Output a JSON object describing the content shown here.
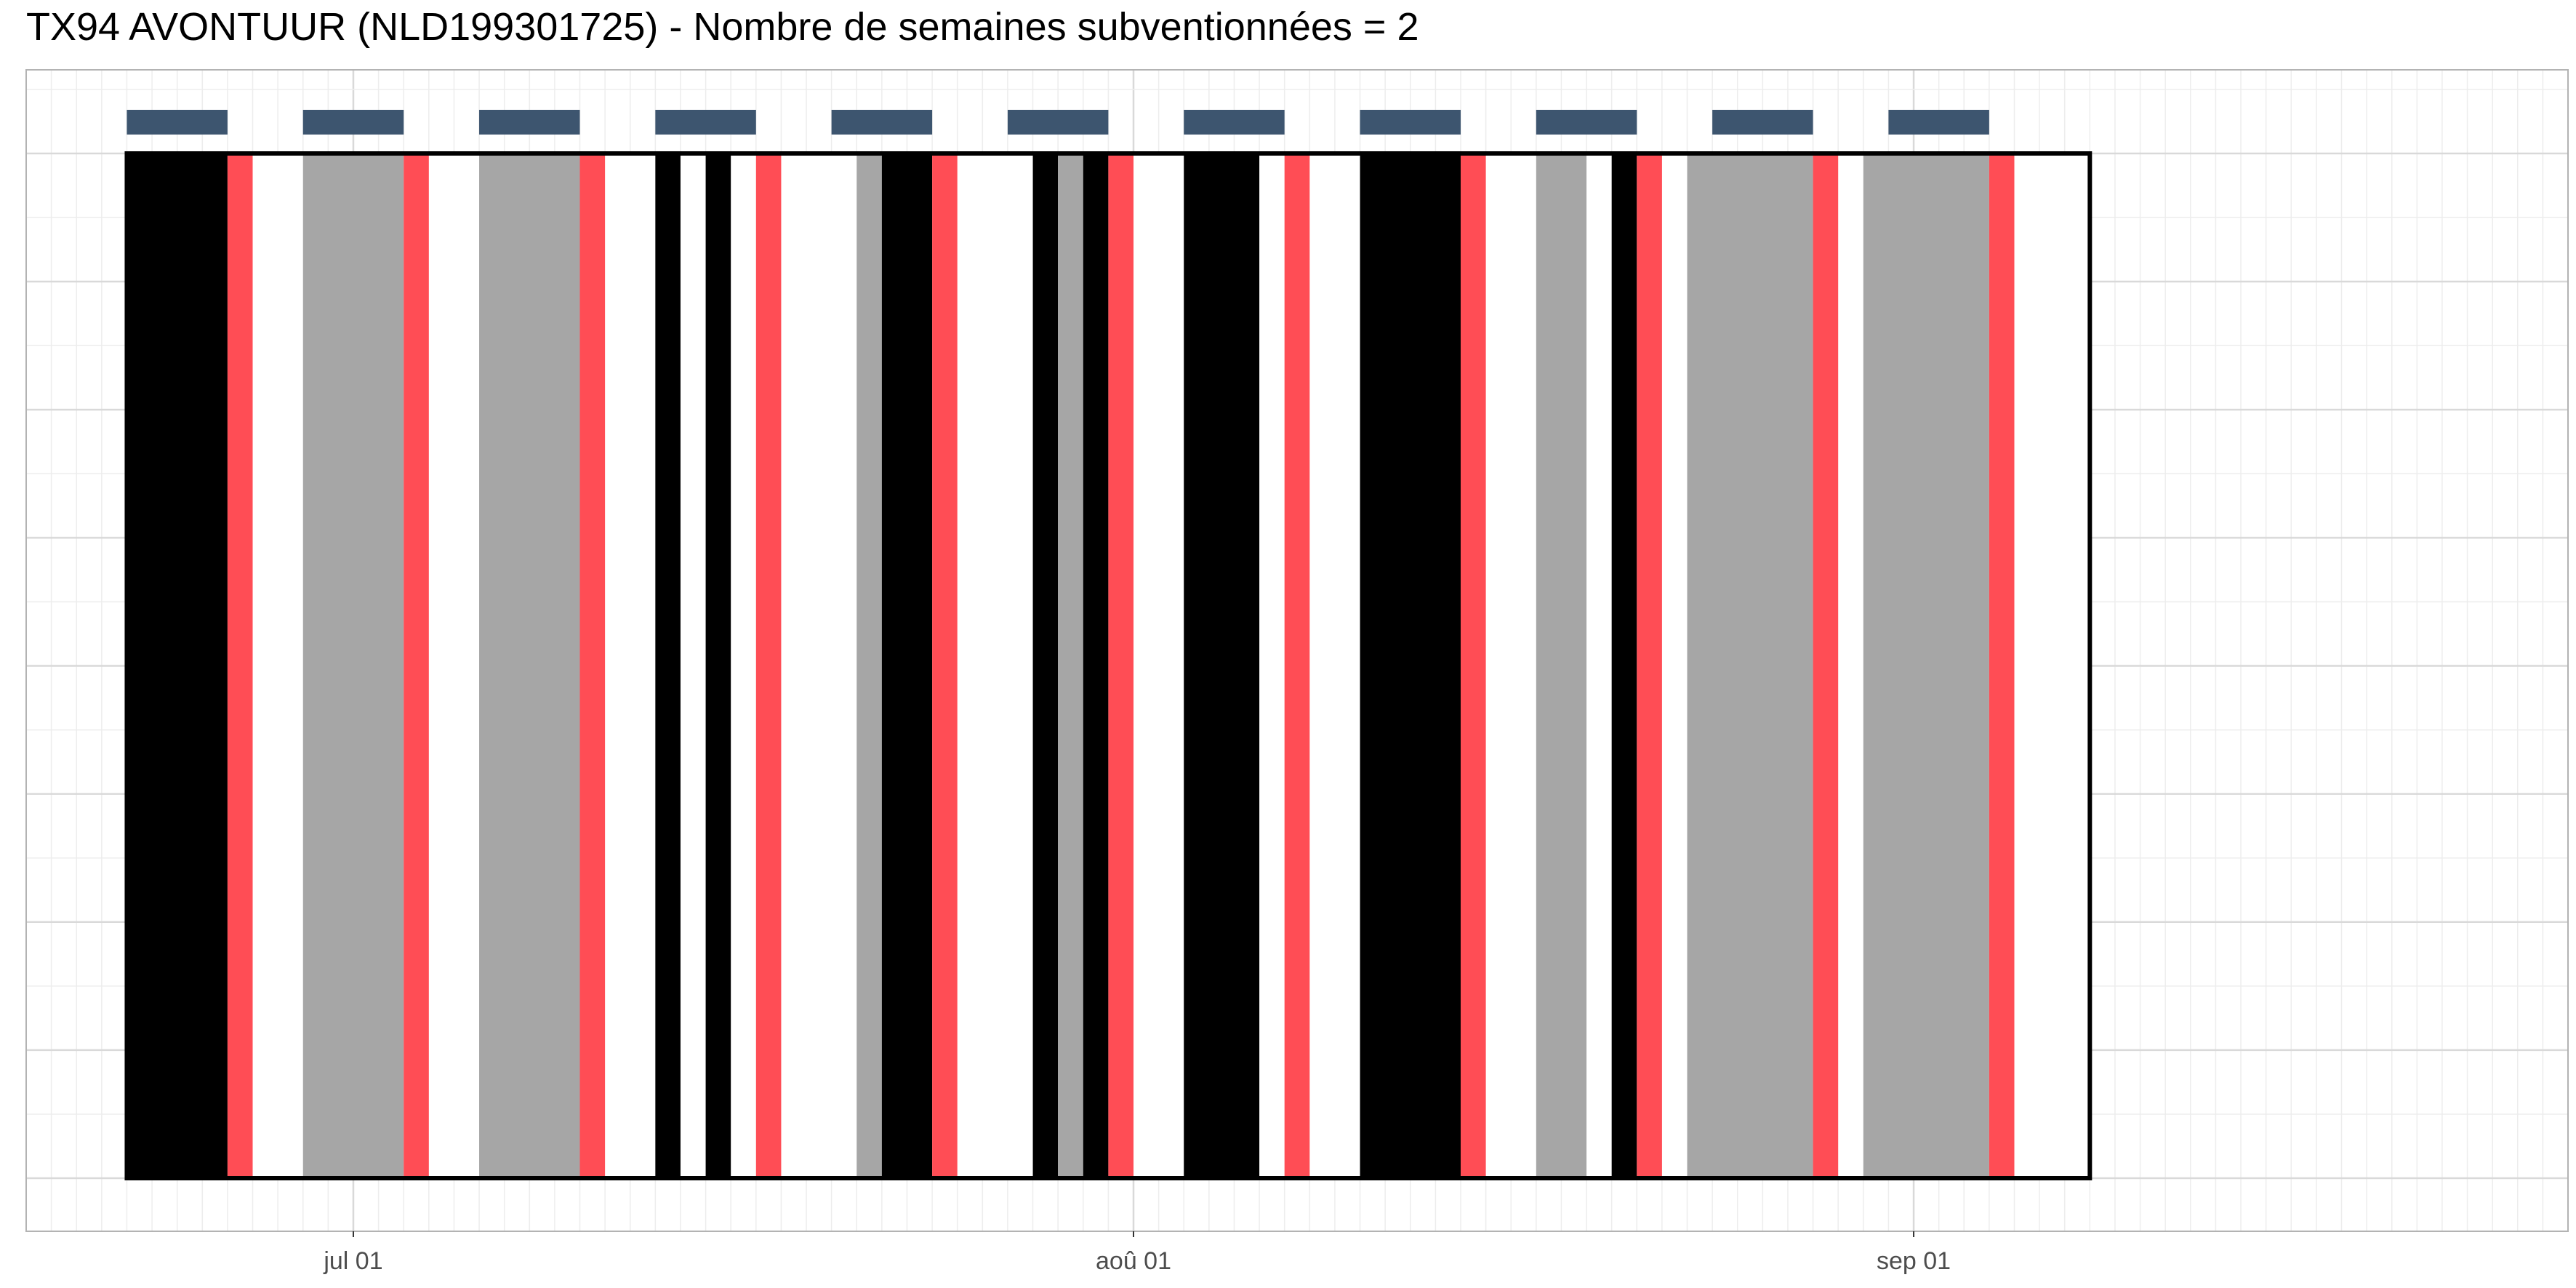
{
  "chart_data": {
    "type": "timeline",
    "title": "TX94 AVONTUUR (NLD199301725) - Nombre de semaines subventionnées = 2",
    "xlabel": "",
    "ylabel": "",
    "x_axis": {
      "type": "date",
      "range": [
        "2018-06-18",
        "2018-09-27"
      ],
      "tick_labels": [
        {
          "date": "2018-07-01",
          "label": "jul 01"
        },
        {
          "date": "2018-08-01",
          "label": "aoû 01"
        },
        {
          "date": "2018-09-01",
          "label": "sep 01"
        }
      ]
    },
    "grid": true,
    "period": {
      "start": "2018-06-22",
      "end": "2018-09-08"
    },
    "weeks": [
      {
        "start": "2018-06-22",
        "end": "2018-06-26"
      },
      {
        "start": "2018-06-29",
        "end": "2018-07-03"
      },
      {
        "start": "2018-07-06",
        "end": "2018-07-10"
      },
      {
        "start": "2018-07-13",
        "end": "2018-07-17"
      },
      {
        "start": "2018-07-20",
        "end": "2018-07-24"
      },
      {
        "start": "2018-07-27",
        "end": "2018-07-31"
      },
      {
        "start": "2018-08-03",
        "end": "2018-08-07"
      },
      {
        "start": "2018-08-10",
        "end": "2018-08-14"
      },
      {
        "start": "2018-08-17",
        "end": "2018-08-21"
      },
      {
        "start": "2018-08-24",
        "end": "2018-08-28"
      },
      {
        "start": "2018-08-31",
        "end": "2018-09-04"
      }
    ],
    "days": [
      {
        "start": "2018-06-22",
        "end": "2018-06-26",
        "category": "black"
      },
      {
        "start": "2018-06-26",
        "end": "2018-06-27",
        "category": "red"
      },
      {
        "start": "2018-06-29",
        "end": "2018-07-03",
        "category": "gray"
      },
      {
        "start": "2018-07-03",
        "end": "2018-07-04",
        "category": "red"
      },
      {
        "start": "2018-07-06",
        "end": "2018-07-10",
        "category": "gray"
      },
      {
        "start": "2018-07-10",
        "end": "2018-07-11",
        "category": "red"
      },
      {
        "start": "2018-07-13",
        "end": "2018-07-14",
        "category": "black"
      },
      {
        "start": "2018-07-15",
        "end": "2018-07-16",
        "category": "black"
      },
      {
        "start": "2018-07-17",
        "end": "2018-07-18",
        "category": "red"
      },
      {
        "start": "2018-07-21",
        "end": "2018-07-22",
        "category": "gray"
      },
      {
        "start": "2018-07-22",
        "end": "2018-07-24",
        "category": "black"
      },
      {
        "start": "2018-07-24",
        "end": "2018-07-25",
        "category": "red"
      },
      {
        "start": "2018-07-28",
        "end": "2018-07-29",
        "category": "black"
      },
      {
        "start": "2018-07-29",
        "end": "2018-07-30",
        "category": "gray"
      },
      {
        "start": "2018-07-30",
        "end": "2018-07-31",
        "category": "black"
      },
      {
        "start": "2018-07-31",
        "end": "2018-08-01",
        "category": "red"
      },
      {
        "start": "2018-08-03",
        "end": "2018-08-06",
        "category": "black"
      },
      {
        "start": "2018-08-07",
        "end": "2018-08-08",
        "category": "red"
      },
      {
        "start": "2018-08-10",
        "end": "2018-08-14",
        "category": "black"
      },
      {
        "start": "2018-08-14",
        "end": "2018-08-15",
        "category": "red"
      },
      {
        "start": "2018-08-17",
        "end": "2018-08-19",
        "category": "gray"
      },
      {
        "start": "2018-08-20",
        "end": "2018-08-21",
        "category": "black"
      },
      {
        "start": "2018-08-21",
        "end": "2018-08-22",
        "category": "red"
      },
      {
        "start": "2018-08-23",
        "end": "2018-08-28",
        "category": "gray"
      },
      {
        "start": "2018-08-28",
        "end": "2018-08-29",
        "category": "red"
      },
      {
        "start": "2018-08-30",
        "end": "2018-09-04",
        "category": "gray"
      },
      {
        "start": "2018-09-04",
        "end": "2018-09-05",
        "category": "red"
      }
    ],
    "colors": {
      "black": "#000000",
      "gray": "#a6a6a6",
      "red": "#ff4d55",
      "week_marker": "#3d556f",
      "frame": "#000000",
      "grid_major": "#d9d9d9",
      "grid_minor": "#ededed",
      "panel_border": "#b3b3b3"
    }
  }
}
